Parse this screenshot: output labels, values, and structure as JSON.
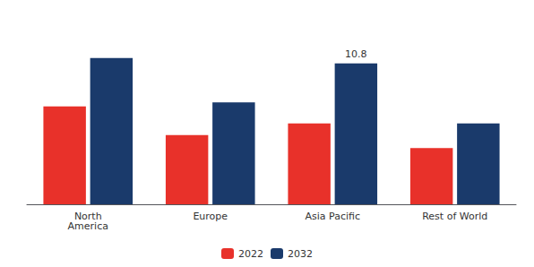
{
  "chart_data": {
    "type": "bar",
    "categories": [
      "North\nAmerica",
      "Europe",
      "Asia Pacific",
      "Rest of World"
    ],
    "series": [
      {
        "name": "2022",
        "color": "#e8312a",
        "values": [
          7.5,
          5.3,
          6.2,
          4.3
        ]
      },
      {
        "name": "2032",
        "color": "#1a3a6b",
        "values": [
          11.2,
          7.8,
          10.8,
          6.2
        ]
      }
    ],
    "ylim": [
      0,
      14
    ],
    "tick_labels": "x",
    "grid": false,
    "legend": "bottom",
    "annotations": [
      {
        "text": "10.8",
        "category": "Asia Pacific",
        "series": "2032"
      }
    ]
  }
}
